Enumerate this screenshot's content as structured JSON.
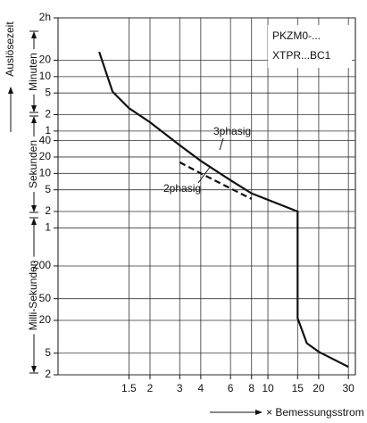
{
  "chart_data": {
    "type": "line",
    "y_label": "Auslösezeit",
    "x_label": "× Bemessungsstrom",
    "groups": [
      "Minuten",
      "Sekunden",
      "Milli-Sekunden"
    ],
    "annotations": [
      "PKZM0-...",
      "XTPR...BC1"
    ],
    "log_x": true,
    "log_y": true,
    "grid": true,
    "xlim": [
      0.57,
      33
    ],
    "xticks": [
      1.5,
      2,
      3,
      4,
      6,
      8,
      10,
      15,
      20,
      30
    ],
    "ylim": [
      0.002,
      7200
    ],
    "yticks": [
      {
        "value": 7200,
        "label": "2h"
      },
      {
        "value": 1200,
        "label": "20"
      },
      {
        "value": 600,
        "label": "10"
      },
      {
        "value": 300,
        "label": "5"
      },
      {
        "value": 120,
        "label": "2"
      },
      {
        "value": 60,
        "label": "1"
      },
      40,
      20,
      10,
      5,
      2,
      1,
      {
        "value": 0.2,
        "label": "200"
      },
      {
        "value": 0.05,
        "label": "50"
      },
      {
        "value": 0.02,
        "label": "20"
      },
      {
        "value": 0.005,
        "label": "5"
      },
      {
        "value": 0.002,
        "label": "2"
      }
    ],
    "series": [
      {
        "name": "3phasig",
        "color": "#111111",
        "dashed": false,
        "x": [
          1.0,
          1.2,
          1.5,
          2,
          3,
          4,
          6,
          8,
          15,
          15,
          17,
          20,
          30
        ],
        "values": [
          1700,
          316,
          158,
          87,
          33,
          17,
          7.5,
          4.3,
          2,
          0.022,
          0.0076,
          0.0053,
          0.0028
        ]
      },
      {
        "name": "2phasig",
        "color": "#111111",
        "dashed": true,
        "x": [
          3,
          4,
          6,
          8
        ],
        "values": [
          16,
          10,
          5.3,
          3.4
        ]
      }
    ]
  }
}
